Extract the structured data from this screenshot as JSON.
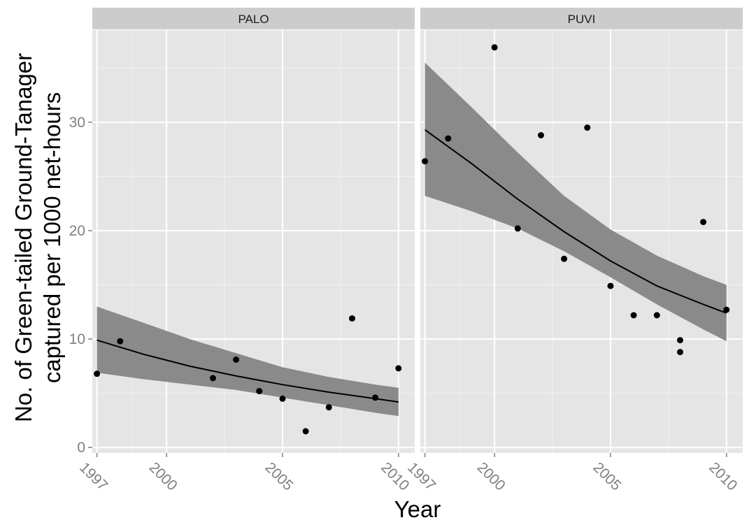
{
  "chart_data": {
    "type": "scatter",
    "facets": true,
    "xlabel": "Year",
    "ylabel": "No. of Green-tailed Ground-Tanager",
    "ylabel_line2": "captured per 1000 net-hours",
    "xlim": [
      1996.8,
      2010.7
    ],
    "ylim": [
      -0.5,
      38.5
    ],
    "x_ticks": [
      1997,
      2000,
      2005,
      2010
    ],
    "y_ticks": [
      0,
      10,
      20,
      30
    ],
    "x_tick_labels": [
      "1997",
      "2000",
      "2005",
      "2010"
    ],
    "y_tick_labels": [
      "0",
      "10",
      "20",
      "30"
    ],
    "grid": true,
    "colors": {
      "panel_bg": "#e5e5e5",
      "strip_bg": "#cccccc",
      "grid_major": "#ffffff",
      "grid_minor": "#f2f2f2",
      "points": "#000000",
      "fit_line": "#000000",
      "ribbon": "#8a8a8a"
    },
    "panels": [
      {
        "label": "PALO",
        "points": [
          {
            "x": 1997,
            "y": 6.8
          },
          {
            "x": 1998,
            "y": 9.8
          },
          {
            "x": 2002,
            "y": 6.4
          },
          {
            "x": 2003,
            "y": 8.1
          },
          {
            "x": 2004,
            "y": 5.2
          },
          {
            "x": 2005,
            "y": 4.5
          },
          {
            "x": 2006,
            "y": 1.5
          },
          {
            "x": 2007,
            "y": 3.7
          },
          {
            "x": 2008,
            "y": 11.9
          },
          {
            "x": 2009,
            "y": 4.6
          },
          {
            "x": 2010,
            "y": 7.3
          }
        ],
        "fit": {
          "x": [
            1997,
            1999,
            2001,
            2003,
            2005,
            2007,
            2009,
            2010
          ],
          "y": [
            9.9,
            8.6,
            7.5,
            6.6,
            5.8,
            5.1,
            4.5,
            4.2
          ],
          "lo": [
            6.9,
            6.3,
            5.8,
            5.3,
            4.6,
            3.9,
            3.2,
            2.9
          ],
          "hi": [
            13.0,
            11.5,
            10.0,
            8.7,
            7.4,
            6.5,
            5.8,
            5.5
          ]
        }
      },
      {
        "label": "PUVI",
        "points": [
          {
            "x": 1997,
            "y": 26.4
          },
          {
            "x": 1998,
            "y": 28.5
          },
          {
            "x": 2000,
            "y": 36.9
          },
          {
            "x": 2001,
            "y": 20.2
          },
          {
            "x": 2002,
            "y": 28.8
          },
          {
            "x": 2003,
            "y": 17.4
          },
          {
            "x": 2004,
            "y": 29.5
          },
          {
            "x": 2005,
            "y": 14.9
          },
          {
            "x": 2006,
            "y": 12.2
          },
          {
            "x": 2007,
            "y": 12.2
          },
          {
            "x": 2008,
            "y": 9.9
          },
          {
            "x": 2008,
            "y": 8.8
          },
          {
            "x": 2009,
            "y": 20.8
          },
          {
            "x": 2010,
            "y": 12.7
          }
        ],
        "fit": {
          "x": [
            1997,
            1999,
            2001,
            2003,
            2005,
            2007,
            2009,
            2010
          ],
          "y": [
            29.3,
            26.2,
            22.9,
            19.9,
            17.2,
            14.9,
            13.2,
            12.4
          ],
          "lo": [
            23.2,
            21.8,
            20.2,
            18.1,
            15.7,
            13.2,
            10.9,
            9.8
          ],
          "hi": [
            35.5,
            31.4,
            27.2,
            23.2,
            20.1,
            17.7,
            15.8,
            15.0
          ]
        }
      }
    ]
  }
}
